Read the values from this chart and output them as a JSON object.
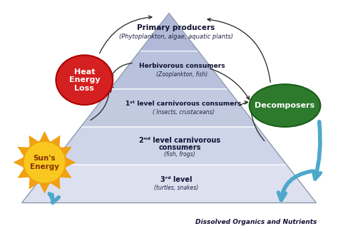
{
  "bg_color": "#ffffff",
  "levels_colors": [
    "#b0bad8",
    "#b8c2dc",
    "#c2cae0",
    "#ced5e8",
    "#dde0ef"
  ],
  "level_labels": [
    {
      "main": "Primary producers",
      "italic": "(Phytoplankton, algae, aquatic plants)"
    },
    {
      "main": "Herbivorous consumers",
      "italic": "(Zooplankton, fish)"
    },
    {
      "main": "1ˢᵗ level carnivorous consumers",
      "italic": "( Insects, crustaceans)"
    },
    {
      "main": "2ⁿᵈ level carnivorous\nconsumers",
      "italic": "(fish, frogs)"
    },
    {
      "main": "3ʳᵈ level",
      "italic": "(turtles, snakes)"
    }
  ],
  "heat_label": "Heat\nEnergy\nLoss",
  "decomposers_label": "Decomposers",
  "sun_label": "Sun's\nEnergy",
  "dissolved_label": "Dissolved Organics and Nutrients",
  "heat_color": "#d42020",
  "decomposers_color": "#2d7a2d",
  "sun_color": "#f8c820",
  "sun_ray_color": "#f0a010",
  "arrow_blue": "#4da8cc",
  "arrow_black": "#222222"
}
